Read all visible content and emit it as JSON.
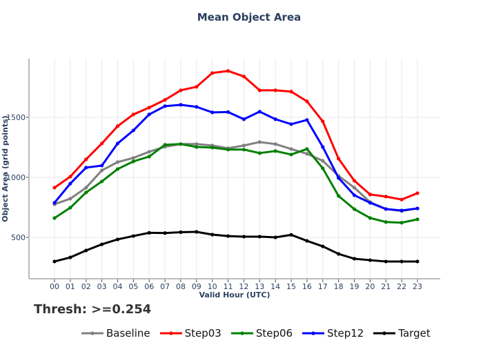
{
  "chart_data": {
    "type": "line",
    "title": "Mean Object Area",
    "xlabel": "Valid Hour (UTC)",
    "ylabel": "Object Area (grid points)",
    "annotation": "Thresh: >=0.254",
    "x": [
      "00",
      "01",
      "02",
      "03",
      "04",
      "05",
      "06",
      "07",
      "08",
      "09",
      "10",
      "11",
      "12",
      "13",
      "14",
      "15",
      "16",
      "17",
      "18",
      "19",
      "20",
      "21",
      "22",
      "23"
    ],
    "yticks": [
      500,
      1000,
      1500
    ],
    "ylim": [
      165,
      1990
    ],
    "grid": true,
    "legend_position": "bottom",
    "series": [
      {
        "name": "Baseline",
        "color": "#808080",
        "values": [
          776,
          822,
          914,
          1058,
          1127,
          1162,
          1213,
          1255,
          1277,
          1277,
          1265,
          1242,
          1265,
          1294,
          1277,
          1236,
          1196,
          1138,
          1012,
          914,
          793,
          736,
          719,
          741
        ]
      },
      {
        "name": "Step03",
        "color": "#ff0000",
        "values": [
          914,
          1006,
          1150,
          1282,
          1426,
          1524,
          1581,
          1645,
          1725,
          1754,
          1869,
          1886,
          1840,
          1725,
          1725,
          1714,
          1633,
          1466,
          1155,
          972,
          857,
          840,
          815,
          868
        ]
      },
      {
        "name": "Step06",
        "color": "#008000",
        "values": [
          661,
          747,
          874,
          966,
          1069,
          1133,
          1173,
          1271,
          1277,
          1253,
          1248,
          1231,
          1231,
          1202,
          1219,
          1190,
          1236,
          1075,
          845,
          735,
          661,
          628,
          622,
          650
        ]
      },
      {
        "name": "Step12",
        "color": "#0000ff",
        "values": [
          788,
          948,
          1081,
          1098,
          1282,
          1391,
          1524,
          1593,
          1604,
          1587,
          1541,
          1544,
          1484,
          1547,
          1484,
          1443,
          1478,
          1253,
          995,
          851,
          788,
          736,
          724,
          741
        ]
      },
      {
        "name": "Target",
        "color": "#000000",
        "values": [
          299,
          333,
          391,
          442,
          483,
          511,
          538,
          536,
          543,
          546,
          523,
          511,
          506,
          506,
          500,
          521,
          471,
          425,
          362,
          322,
          310,
          299,
          299,
          299
        ]
      }
    ]
  }
}
